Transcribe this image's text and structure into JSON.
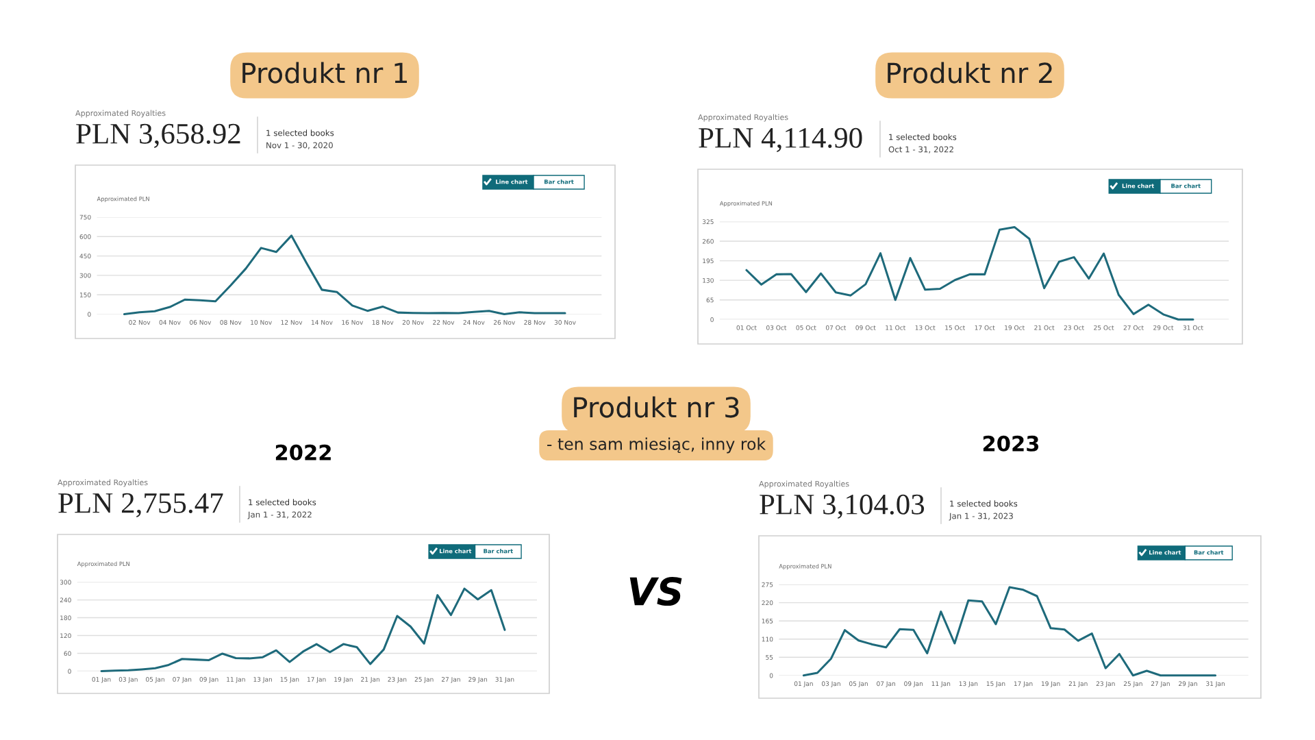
{
  "chart_data": [
    {
      "type": "line",
      "title": "Produkt nr 1",
      "ylabel": "Approximated PLN",
      "color": "#1e6a7b",
      "grid": "y",
      "ylim": [
        0,
        750
      ],
      "yticks": [
        0,
        150,
        300,
        450,
        600,
        750
      ],
      "categories": [
        null,
        "02 Nov",
        null,
        "04 Nov",
        null,
        "06 Nov",
        null,
        "08 Nov",
        null,
        "10 Nov",
        null,
        "12 Nov",
        null,
        "14 Nov",
        null,
        "16 Nov",
        null,
        "18 Nov",
        null,
        "20 Nov",
        null,
        "22 Nov",
        null,
        "24 Nov",
        null,
        "26 Nov",
        null,
        "28 Nov",
        null,
        "30 Nov"
      ],
      "values": [
        0,
        15,
        23,
        56,
        113,
        108,
        100,
        223,
        353,
        512,
        481,
        607,
        394,
        189,
        171,
        67,
        26,
        59,
        13,
        10,
        8,
        10,
        8,
        18,
        26,
        0,
        15,
        8,
        8,
        8
      ],
      "annotations": [
        "Approximated Royalties",
        "PLN 3,658.92",
        "1 selected books",
        "Nov 1 - 30, 2020",
        "Line chart",
        "Bar chart"
      ]
    },
    {
      "type": "line",
      "title": "Produkt nr 2",
      "ylabel": "Approximated PLN",
      "color": "#1e6a7b",
      "grid": "y",
      "ylim": [
        0,
        325
      ],
      "yticks": [
        0,
        65,
        130,
        195,
        260,
        325
      ],
      "categories": [
        "01 Oct",
        null,
        "03 Oct",
        null,
        "05 Oct",
        null,
        "07 Oct",
        null,
        "09 Oct",
        null,
        "11 Oct",
        null,
        "13 Oct",
        null,
        "15 Oct",
        null,
        "17 Oct",
        null,
        "19 Oct",
        null,
        "21 Oct",
        null,
        "23 Oct",
        null,
        "25 Oct",
        null,
        "27 Oct",
        null,
        "29 Oct",
        null,
        "31 Oct"
      ],
      "values": [
        164,
        116,
        150,
        151,
        91,
        153,
        90,
        80,
        117,
        220,
        65,
        204,
        99,
        102,
        131,
        150,
        150,
        298,
        307,
        268,
        104,
        192,
        207,
        136,
        219,
        82,
        18,
        49,
        17,
        0,
        0
      ],
      "annotations": [
        "Approximated Royalties",
        "PLN 4,114.90",
        "1 selected books",
        "Oct 1 - 31, 2022",
        "Line chart",
        "Bar chart"
      ]
    },
    {
      "type": "other",
      "title": "Produkt nr 3",
      "subtitle": "- ten sam miesiąc, inny rok",
      "annotations": [
        "VS"
      ]
    },
    {
      "type": "line",
      "ylabel": "Approximated PLN",
      "color": "#1e6a7b",
      "grid": "y",
      "ylim": [
        0,
        300
      ],
      "yticks": [
        0,
        60,
        120,
        180,
        240,
        300
      ],
      "categories": [
        "01 Jan",
        null,
        "03 Jan",
        null,
        "05 Jan",
        null,
        "07 Jan",
        null,
        "09 Jan",
        null,
        "11 Jan",
        null,
        "13 Jan",
        null,
        "15 Jan",
        null,
        "17 Jan",
        null,
        "19 Jan",
        null,
        "21 Jan",
        null,
        "23 Jan",
        null,
        "25 Jan",
        null,
        "27 Jan",
        null,
        "29 Jan",
        null,
        "31 Jan"
      ],
      "values": [
        0,
        2,
        3,
        6,
        10,
        21,
        41,
        39,
        37,
        59,
        44,
        43,
        47,
        70,
        31,
        66,
        91,
        64,
        91,
        81,
        24,
        73,
        186,
        150,
        93,
        256,
        189,
        278,
        242,
        273,
        139
      ],
      "annotations": [
        "Approximated Royalties",
        "PLN 2,755.47",
        "1 selected books",
        "Jan 1 - 31, 2022",
        "Line chart",
        "Bar chart",
        "2022"
      ]
    },
    {
      "type": "line",
      "ylabel": "Approximated PLN",
      "color": "#1e6a7b",
      "grid": "y",
      "ylim": [
        0,
        275
      ],
      "yticks": [
        0,
        55,
        110,
        165,
        220,
        275
      ],
      "categories": [
        "01 Jan",
        null,
        "03 Jan",
        null,
        "05 Jan",
        null,
        "07 Jan",
        null,
        "09 Jan",
        null,
        "11 Jan",
        null,
        "13 Jan",
        null,
        "15 Jan",
        null,
        "17 Jan",
        null,
        "19 Jan",
        null,
        "21 Jan",
        null,
        "23 Jan",
        null,
        "25 Jan",
        null,
        "27 Jan",
        null,
        "29 Jan",
        null,
        "31 Jan"
      ],
      "values": [
        0,
        8,
        51,
        137,
        106,
        94,
        85,
        140,
        138,
        67,
        193,
        97,
        227,
        224,
        155,
        267,
        259,
        240,
        143,
        139,
        105,
        127,
        22,
        65,
        0,
        14,
        0,
        0,
        0,
        0,
        0
      ],
      "annotations": [
        "Approximated Royalties",
        "PLN 3,104.03",
        "1 selected books",
        "Jan 1 - 31, 2023",
        "Line chart",
        "Bar chart",
        "2023"
      ]
    }
  ]
}
